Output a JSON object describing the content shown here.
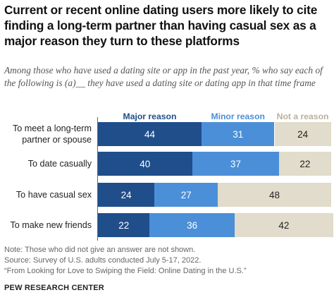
{
  "header": {
    "title": "Current or recent online dating users more likely to cite finding a long-term partner than having casual sex as a major reason they turn to these platforms",
    "subtitle": "Among those who have used a dating site or app in the past year, % who say each of the following is (a)__ they have used a dating site or dating app in that time frame"
  },
  "colors": {
    "major": "#1f4e8b",
    "minor": "#4b8fd9",
    "not": "#e1dccb",
    "not_label": "#b9b29d"
  },
  "chart_data": {
    "type": "bar",
    "orientation": "horizontal",
    "stacked": true,
    "categories": [
      "To meet a long-term partner or spouse",
      "To date casually",
      "To have casual sex",
      "To make new friends"
    ],
    "series": [
      {
        "name": "Major reason",
        "values": [
          44,
          40,
          24,
          22
        ]
      },
      {
        "name": "Minor reason",
        "values": [
          31,
          37,
          27,
          36
        ]
      },
      {
        "name": "Not a reason",
        "values": [
          24,
          22,
          48,
          42
        ]
      }
    ],
    "xlim": [
      0,
      100
    ],
    "grid": false,
    "legend": "top"
  },
  "footer": {
    "note": "Note: Those who did not give an answer are not shown.",
    "source": "Source: Survey of U.S. adults conducted July 5-17, 2022.",
    "report": "“From Looking for Love to Swiping the Field: Online Dating in the U.S.”",
    "org": "PEW RESEARCH CENTER"
  }
}
